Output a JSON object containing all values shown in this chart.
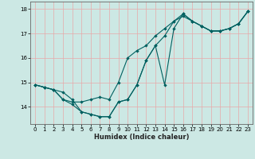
{
  "xlabel": "Humidex (Indice chaleur)",
  "ylabel": "",
  "background_color": "#cce8e4",
  "grid_color": "#e8a8a8",
  "line_color": "#006060",
  "x_values": [
    0,
    1,
    2,
    3,
    4,
    5,
    6,
    7,
    8,
    9,
    10,
    11,
    12,
    13,
    14,
    15,
    16,
    17,
    18,
    19,
    20,
    21,
    22,
    23
  ],
  "line1_y": [
    14.9,
    14.8,
    14.7,
    14.6,
    14.3,
    13.8,
    13.7,
    13.6,
    13.6,
    14.2,
    14.3,
    14.9,
    15.9,
    16.5,
    14.9,
    17.2,
    17.8,
    17.5,
    17.3,
    17.1,
    17.1,
    17.2,
    17.4,
    17.9
  ],
  "line2_y": [
    14.9,
    14.8,
    14.7,
    14.3,
    14.2,
    14.2,
    14.3,
    14.4,
    14.3,
    15.0,
    16.0,
    16.3,
    16.5,
    16.9,
    17.2,
    17.5,
    17.7,
    17.5,
    17.3,
    17.1,
    17.1,
    17.2,
    17.4,
    17.9
  ],
  "line3_y": [
    14.9,
    14.8,
    14.7,
    14.3,
    14.1,
    13.8,
    13.7,
    13.6,
    13.6,
    14.2,
    14.3,
    14.9,
    15.9,
    16.5,
    16.9,
    17.5,
    17.8,
    17.5,
    17.3,
    17.1,
    17.1,
    17.2,
    17.4,
    17.9
  ],
  "xlim": [
    -0.5,
    23.5
  ],
  "ylim": [
    13.3,
    18.3
  ],
  "yticks": [
    14,
    15,
    16,
    17,
    18
  ],
  "xticks": [
    0,
    1,
    2,
    3,
    4,
    5,
    6,
    7,
    8,
    9,
    10,
    11,
    12,
    13,
    14,
    15,
    16,
    17,
    18,
    19,
    20,
    21,
    22,
    23
  ]
}
